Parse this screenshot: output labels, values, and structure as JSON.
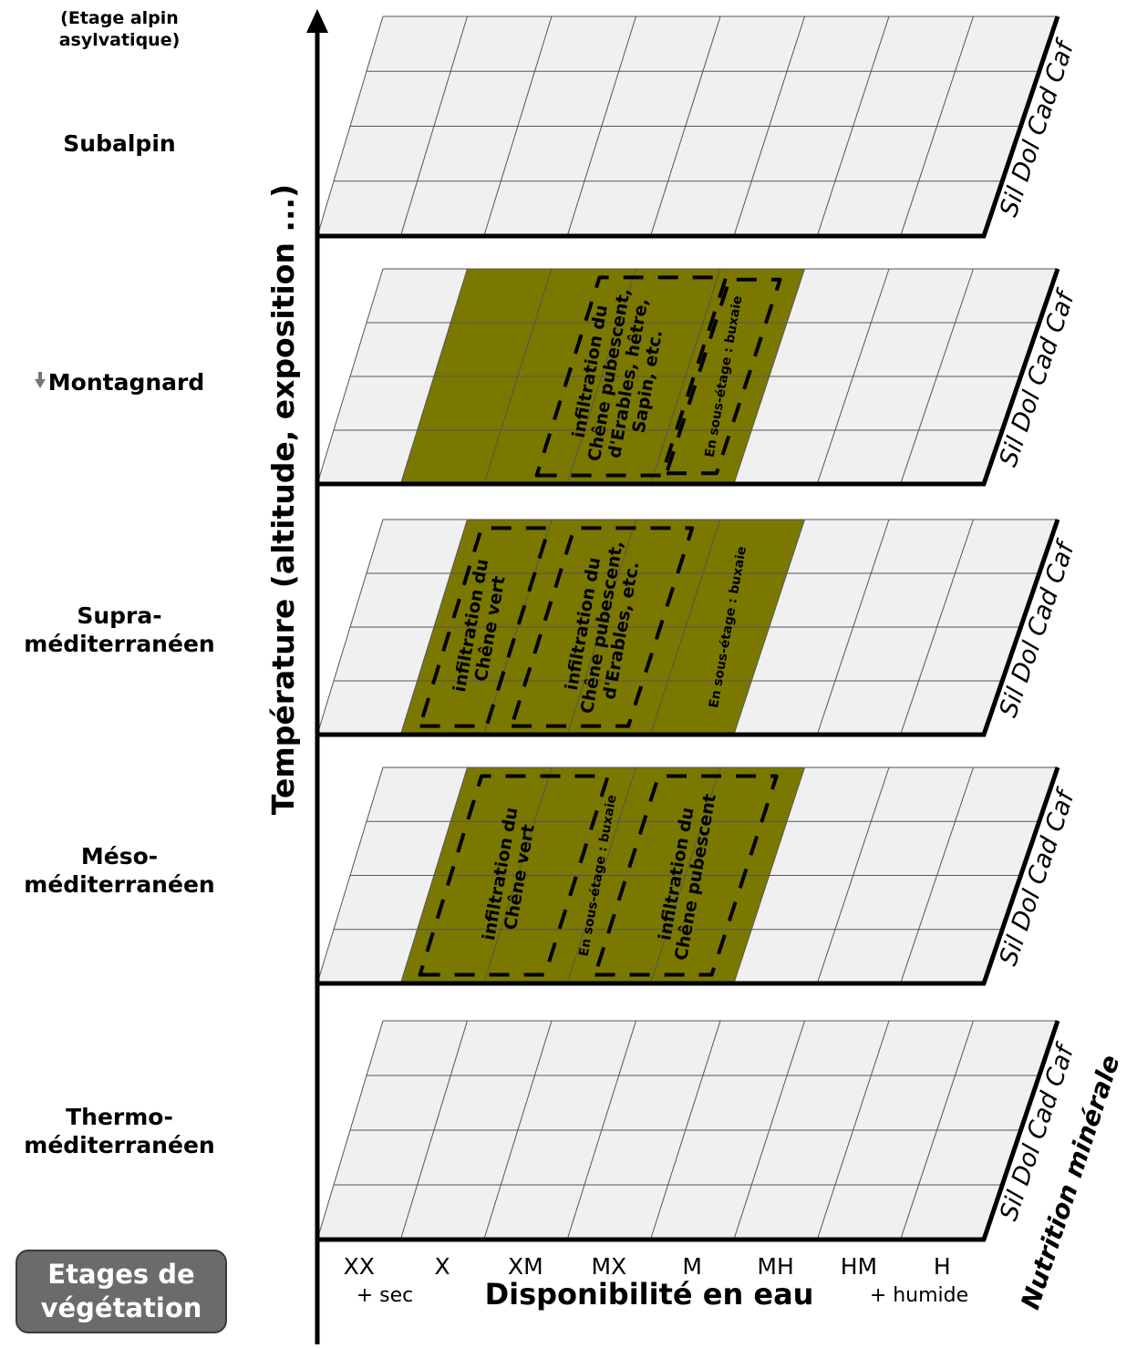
{
  "stages": [
    {
      "id": "alpin",
      "lines": [
        "(Etage alpin",
        "asylvatique)"
      ],
      "small": true
    },
    {
      "id": "subalpin",
      "lines": [
        "Subalpin"
      ]
    },
    {
      "id": "montagnard",
      "lines": [
        "Montagnard"
      ],
      "arrow": true
    },
    {
      "id": "supra",
      "lines": [
        "Supra-",
        "méditerranéen"
      ]
    },
    {
      "id": "meso",
      "lines": [
        "Méso-",
        "méditerranéen"
      ]
    },
    {
      "id": "thermo",
      "lines": [
        "Thermo-",
        "méditerranéen"
      ]
    }
  ],
  "legend": {
    "line1": "Etages de",
    "line2": "végétation"
  },
  "y_axis_label": "Température (altitude, exposition ...)",
  "x_axis_label": "Disponibilité en eau",
  "x_left_hint": "+ sec",
  "x_right_hint": "+ humide",
  "water_classes": [
    "XX",
    "X",
    "XM",
    "MX",
    "M",
    "MH",
    "HM",
    "H"
  ],
  "nutrition_classes_label": "Sil Dol Cad Caf",
  "nutrition_axis_label": "Nutrition minérale",
  "colors": {
    "fill": "#7a7800",
    "grid": "#f0f0f0",
    "stroke": "#555555"
  },
  "boxes": {
    "montagnard_chene": [
      "infiltration du",
      "Chêne pubescent,",
      "d'Erables, hêtre,",
      "Sapin, etc."
    ],
    "montagnard_buxaie": "En sous-étage : buxaie",
    "supra_chene_vert": [
      "infiltration du",
      "Chêne vert"
    ],
    "supra_chene_pub": [
      "infiltration du",
      "Chêne pubescent,",
      "d'Erables, etc."
    ],
    "supra_buxaie": "En sous-étage : buxaie",
    "meso_chene_vert": [
      "infiltration du",
      "Chêne vert"
    ],
    "meso_buxaie": "En sous-étage : buxaie",
    "meso_chene_pub": [
      "infiltration du",
      "Chêne pubescent"
    ]
  }
}
